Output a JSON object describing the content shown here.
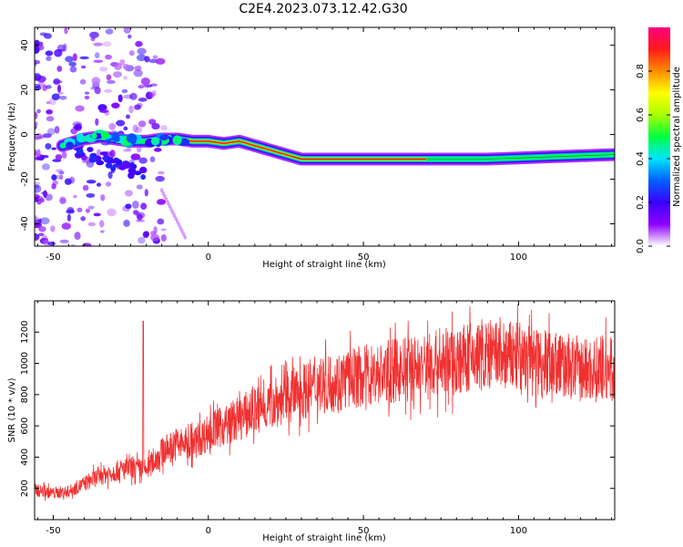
{
  "title": "C2E4.2023.073.12.42.G30",
  "chart_data": [
    {
      "type": "heatmap",
      "title": "",
      "xlabel": "Height of straight line (km)",
      "ylabel": "Frequency (Hz)",
      "xlim": [
        -56,
        131
      ],
      "ylim": [
        -50,
        48
      ],
      "xticks": [
        -50,
        0,
        50,
        100
      ],
      "yticks": [
        -40,
        -20,
        0,
        20,
        40
      ],
      "ridge": {
        "x": [
          -47,
          -40,
          -35,
          -30,
          -25,
          -20,
          -15,
          -10,
          -5,
          0,
          5,
          10,
          15,
          20,
          25,
          30,
          35,
          50,
          70,
          90,
          110,
          131
        ],
        "y": [
          -5,
          -2,
          -1,
          -2,
          -3,
          -3,
          -2,
          -2,
          -3,
          -3,
          -4,
          -3,
          -5,
          -7,
          -9,
          -11,
          -11,
          -11,
          -11,
          -11,
          -10,
          -9
        ]
      },
      "colorbar": {
        "label": "Normalized spectral amplitude",
        "range": [
          0,
          1
        ],
        "ticks": [
          0.0,
          0.2,
          0.4,
          0.6,
          0.8
        ],
        "tick_labels": [
          "0.0",
          "0.2",
          "0.4",
          "0.6",
          "0.8"
        ],
        "colors": [
          "#ffffff",
          "#8f00ff",
          "#3a00ff",
          "#0060ff",
          "#00e5ff",
          "#00ff40",
          "#aaff00",
          "#ffff00",
          "#ff8c00",
          "#ff1a1a",
          "#ff0080"
        ]
      }
    },
    {
      "type": "line",
      "title": "",
      "xlabel": "Height of straight line (km)",
      "ylabel": "SNR (10 * v/v)",
      "xlim": [
        -56,
        131
      ],
      "ylim": [
        0,
        1400
      ],
      "xticks": [
        -50,
        0,
        50,
        100
      ],
      "yticks": [
        200,
        400,
        600,
        800,
        1000,
        1200
      ],
      "color": "#f03030",
      "x": [
        -56,
        -50,
        -45,
        -40,
        -35,
        -30,
        -25,
        -20,
        -15,
        -10,
        -5,
        0,
        5,
        10,
        15,
        20,
        25,
        30,
        35,
        40,
        50,
        60,
        70,
        80,
        90,
        100,
        110,
        120,
        131
      ],
      "y": [
        190,
        170,
        180,
        230,
        280,
        310,
        330,
        320,
        430,
        490,
        480,
        560,
        600,
        650,
        700,
        740,
        780,
        820,
        860,
        880,
        920,
        950,
        980,
        1020,
        1050,
        1040,
        1010,
        960,
        960
      ],
      "spike": {
        "x": -21,
        "y": 1270
      }
    }
  ]
}
